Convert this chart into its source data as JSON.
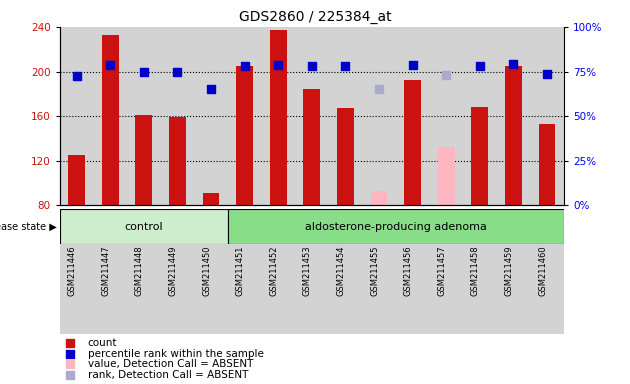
{
  "title": "GDS2860 / 225384_at",
  "samples": [
    "GSM211446",
    "GSM211447",
    "GSM211448",
    "GSM211449",
    "GSM211450",
    "GSM211451",
    "GSM211452",
    "GSM211453",
    "GSM211454",
    "GSM211455",
    "GSM211456",
    "GSM211457",
    "GSM211458",
    "GSM211459",
    "GSM211460"
  ],
  "bar_values": [
    125,
    233,
    161,
    159,
    91,
    205,
    237,
    184,
    167,
    null,
    192,
    null,
    168,
    205,
    153
  ],
  "bar_absent_values": [
    null,
    null,
    null,
    null,
    null,
    null,
    null,
    null,
    null,
    93,
    null,
    132,
    null,
    null,
    null
  ],
  "dot_values": [
    196,
    206,
    200,
    200,
    184,
    205,
    206,
    205,
    205,
    null,
    206,
    null,
    205,
    207,
    198
  ],
  "dot_absent_values": [
    null,
    null,
    null,
    null,
    null,
    null,
    null,
    null,
    null,
    184,
    null,
    197,
    null,
    null,
    null
  ],
  "control_count": 5,
  "ylim_left": [
    80,
    240
  ],
  "ylim_right": [
    0,
    100
  ],
  "yticks_left": [
    80,
    120,
    160,
    200,
    240
  ],
  "yticks_right": [
    0,
    25,
    50,
    75,
    100
  ],
  "bar_color": "#CC1111",
  "bar_absent_color": "#FFB6C1",
  "dot_color": "#0000CC",
  "dot_absent_color": "#AAAACC",
  "control_bg": "#CCEECC",
  "adenoma_bg": "#88DD88",
  "sample_bg": "#D3D3D3",
  "bar_width": 0.5,
  "legend_items": [
    {
      "color": "#CC1111",
      "label": "count"
    },
    {
      "color": "#0000CC",
      "label": "percentile rank within the sample"
    },
    {
      "color": "#FFB6C1",
      "label": "value, Detection Call = ABSENT"
    },
    {
      "color": "#AAAACC",
      "label": "rank, Detection Call = ABSENT"
    }
  ]
}
